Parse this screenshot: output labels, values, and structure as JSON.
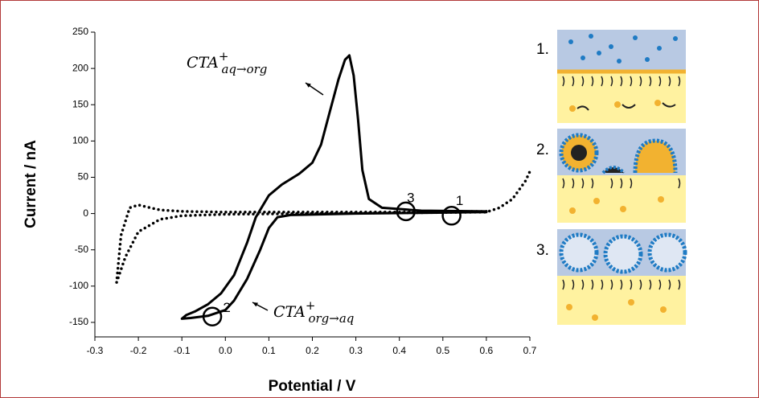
{
  "chart_data": {
    "type": "line",
    "xlabel": "Potential / V",
    "ylabel": "Current / nA",
    "xlim": [
      -0.3,
      0.7
    ],
    "xticks": [
      -0.3,
      -0.2,
      -0.1,
      {
        "value": 0,
        "label": "0.0"
      },
      0.1,
      0.2,
      0.3,
      0.4,
      0.5,
      0.6,
      0.7
    ],
    "ylim": [
      -170,
      250
    ],
    "yticks": [
      -150,
      -100,
      -50,
      0,
      50,
      100,
      150,
      200,
      250
    ],
    "series": [
      {
        "color": "#000000",
        "line_style": "solid",
        "x": [
          0.6,
          0.45,
          0.3,
          0.15,
          0.12,
          0.1,
          0.08,
          0.05,
          0.02,
          0.0,
          -0.04,
          -0.08,
          -0.1,
          -0.09,
          -0.07,
          -0.04,
          -0.01,
          0.02,
          0.05,
          0.07,
          0.1,
          0.13,
          0.17,
          0.2,
          0.22,
          0.24,
          0.26,
          0.275,
          0.285,
          0.295,
          0.305,
          0.315,
          0.33,
          0.36,
          0.45,
          0.6
        ],
        "values": [
          2,
          1,
          0,
          -2,
          -5,
          -20,
          -50,
          -90,
          -120,
          -133,
          -141,
          -144,
          -145,
          -140,
          -135,
          -125,
          -110,
          -85,
          -40,
          -5,
          25,
          40,
          55,
          70,
          95,
          140,
          185,
          212,
          218,
          190,
          130,
          60,
          20,
          8,
          4,
          3
        ]
      },
      {
        "color": "#000000",
        "line_style": "dotted",
        "x": [
          0.6,
          0.4,
          0.2,
          0.0,
          -0.1,
          -0.15,
          -0.18,
          -0.2,
          -0.22,
          -0.24,
          -0.25,
          -0.23,
          -0.2,
          -0.15,
          -0.1,
          0.0,
          0.2,
          0.4,
          0.6,
          0.63,
          0.66,
          0.69,
          0.7
        ],
        "values": [
          3,
          2,
          2,
          2,
          3,
          5,
          9,
          12,
          8,
          -30,
          -95,
          -60,
          -25,
          -8,
          -3,
          -1,
          0,
          1,
          2,
          8,
          20,
          45,
          58
        ]
      }
    ],
    "annotations": [
      {
        "text": "CTA",
        "sup": "+",
        "sub": "aq→org"
      },
      {
        "text": "CTA",
        "sup": "+",
        "sub": "org→aq"
      }
    ],
    "markers": [
      {
        "label": "1",
        "x": 0.52,
        "y": -3
      },
      {
        "label": "2",
        "x": -0.03,
        "y": -142
      },
      {
        "label": "3",
        "x": 0.415,
        "y": 3
      }
    ],
    "panel_labels": [
      "1.",
      "2.",
      "3."
    ]
  }
}
